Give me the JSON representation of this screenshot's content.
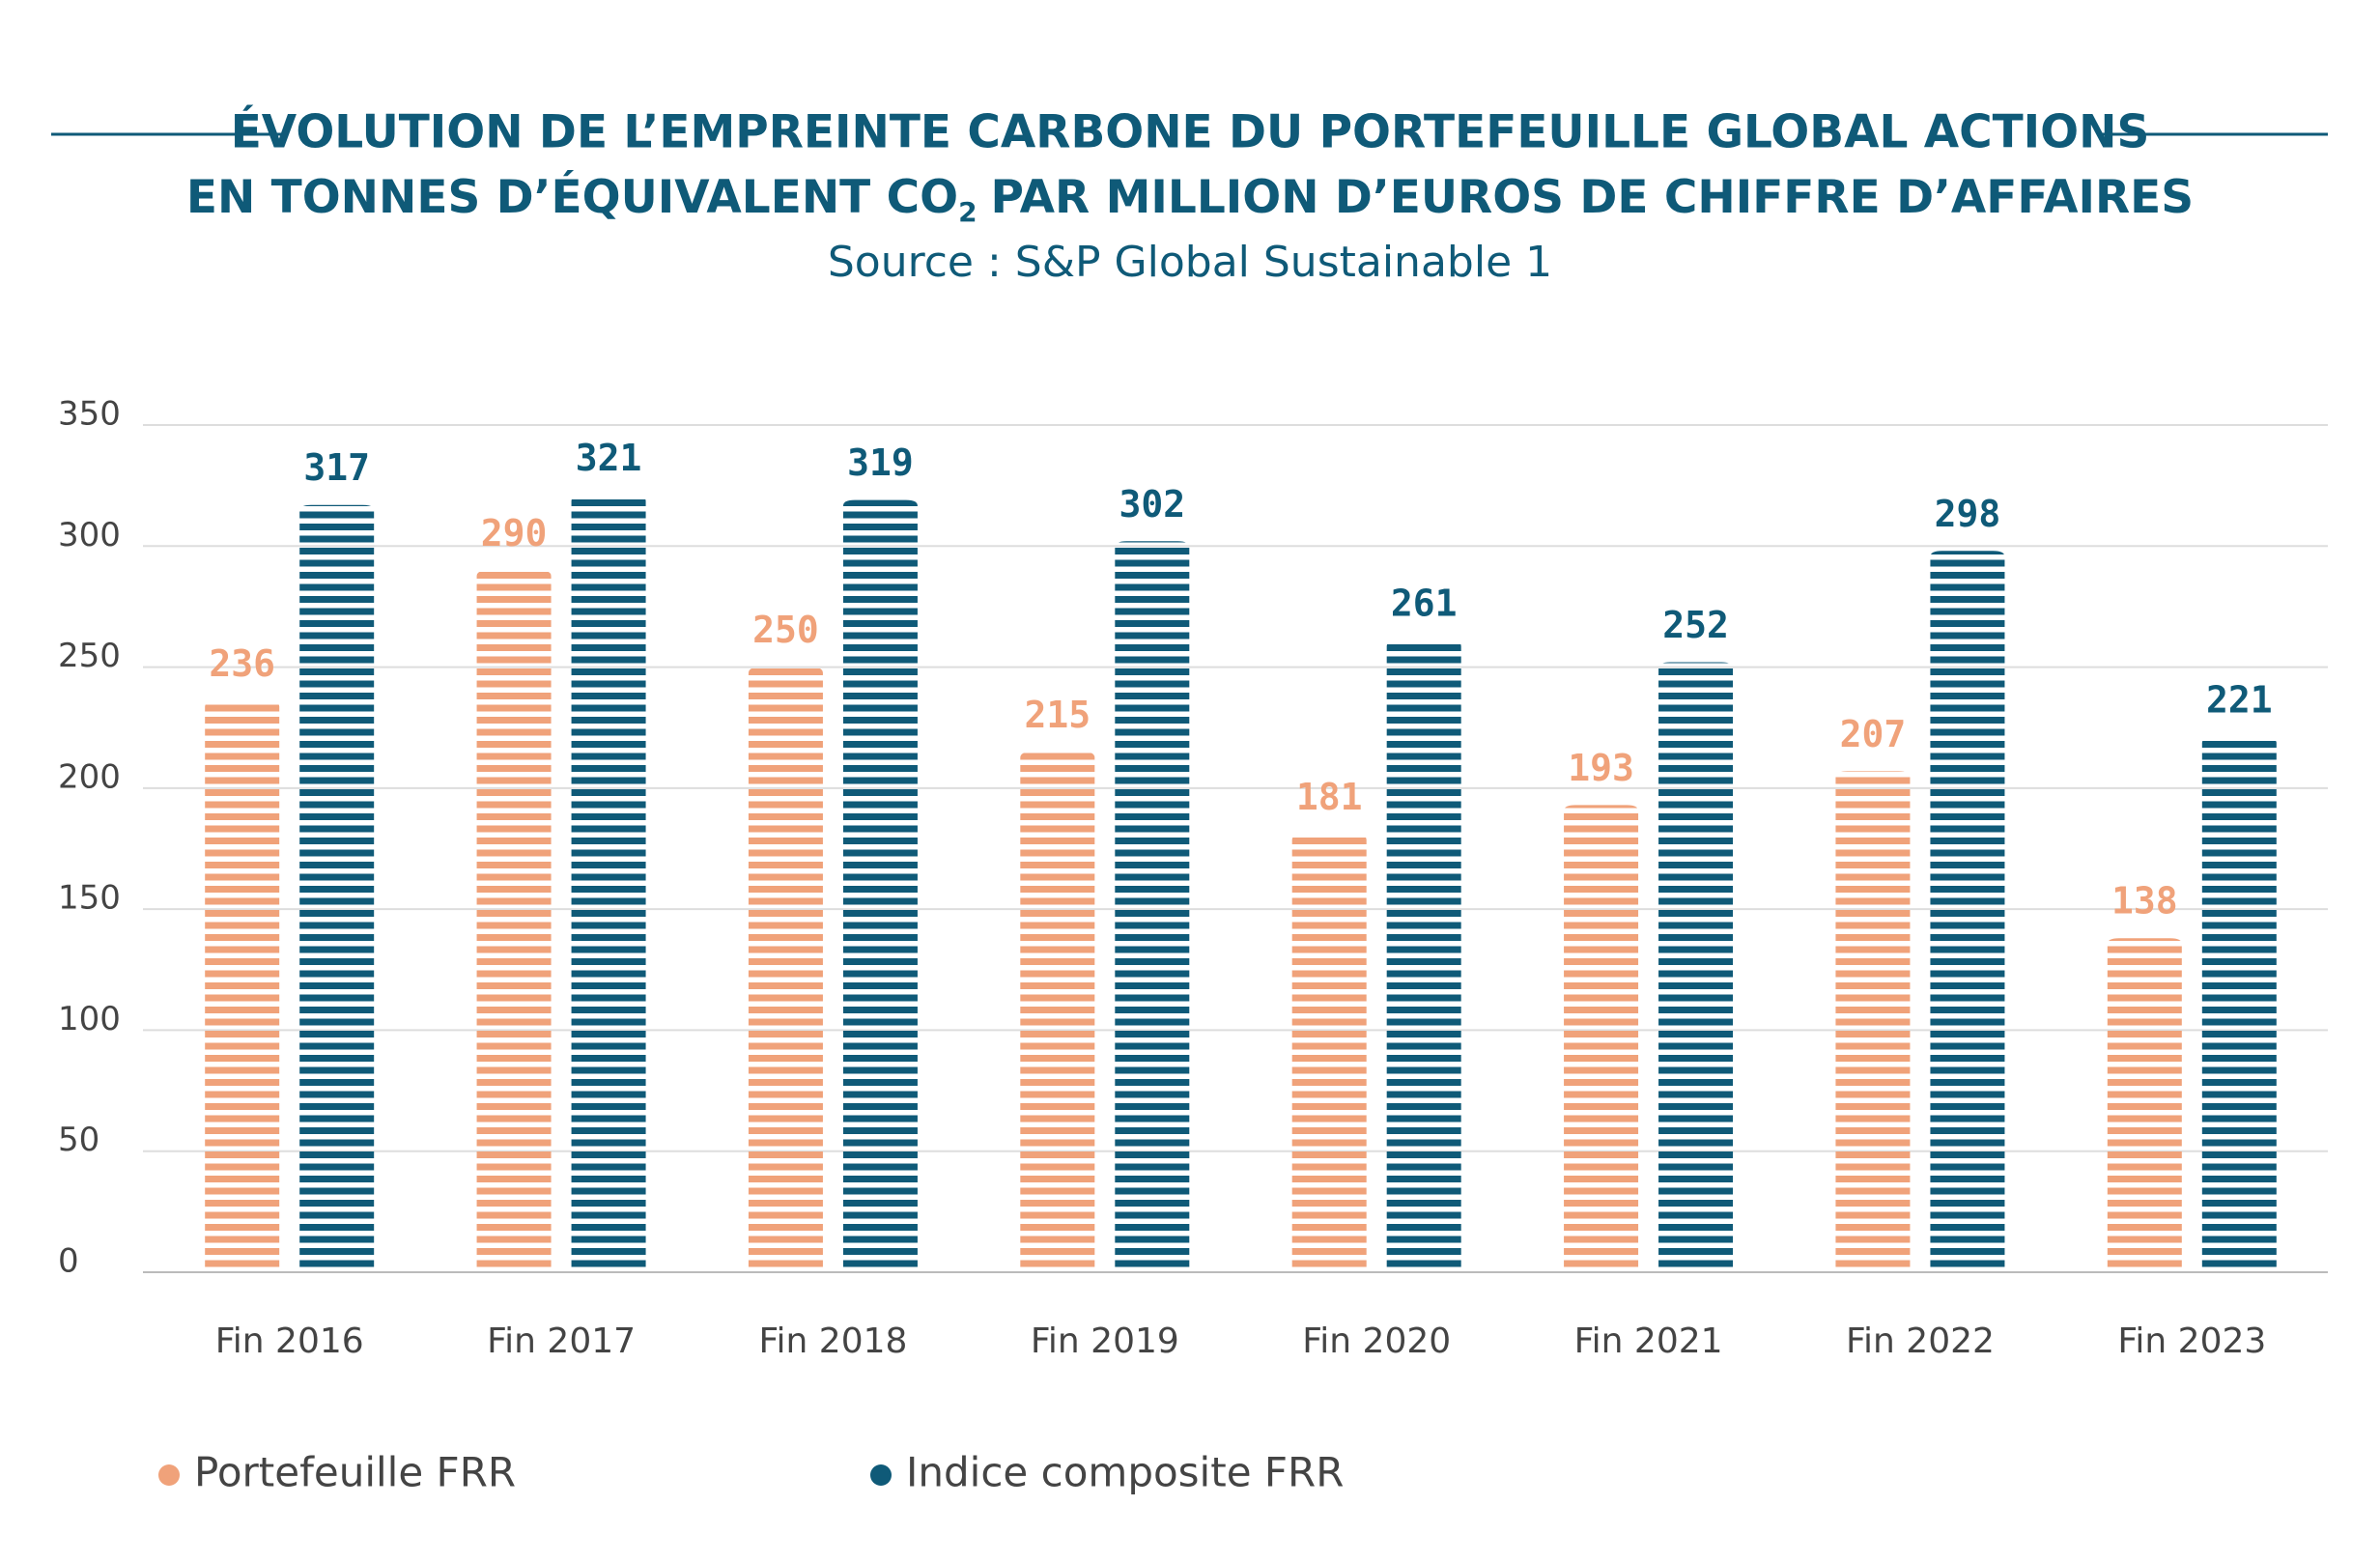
{
  "chart_data": {
    "type": "bar",
    "title": {
      "line1": "ÉVOLUTION DE L’EMPREINTE CARBONE DU PORTEFEUILLE GLOBAL ACTIONS",
      "line2": [
        "EN TONNES D’ÉQUIVALENT CO",
        "2",
        "PAR MILLION D’EUROS DE CHIFFRE D’AFFAIRES"
      ]
    },
    "subtitle": "Source : S&P Global Sustainable 1",
    "categories": [
      "Fin 2016",
      "Fin 2017",
      "Fin 2018",
      "Fin 2019",
      "Fin 2020",
      "Fin 2021",
      "Fin 2022",
      "Fin 2023"
    ],
    "series": [
      {
        "name": "Portefeuille FRR",
        "color": "#f0a27a",
        "values": [
          236,
          290,
          250,
          215,
          181,
          193,
          207,
          138
        ]
      },
      {
        "name": "Indice composite FRR",
        "color": "#0f5a78",
        "values": [
          317,
          321,
          319,
          302,
          261,
          252,
          298,
          221
        ]
      }
    ],
    "ylim": [
      0,
      350
    ],
    "yticks": [
      0,
      50,
      100,
      150,
      200,
      250,
      300,
      350
    ],
    "grid": true
  }
}
